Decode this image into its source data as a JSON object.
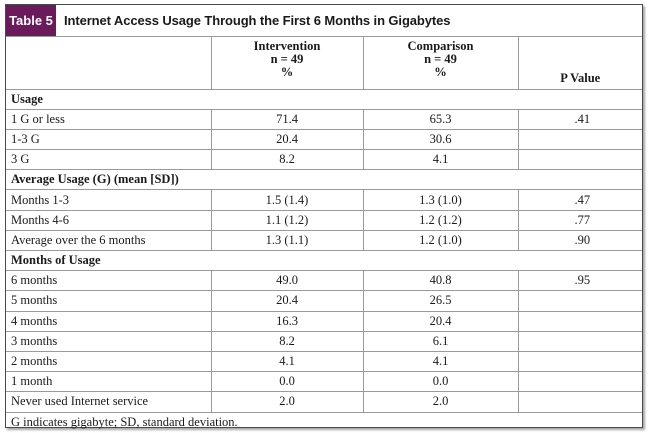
{
  "table_label": "Table 5",
  "title": "Internet Access Usage Through the First 6 Months in Gigabytes",
  "header": {
    "intervention": [
      "Intervention",
      "n = 49",
      "%"
    ],
    "comparison": [
      "Comparison",
      "n = 49",
      "%"
    ],
    "pvalue": "P Value"
  },
  "rows": [
    {
      "type": "section",
      "label": "Usage"
    },
    {
      "type": "data",
      "label": "1 G or less",
      "intervention": "71.4",
      "comparison": "65.3",
      "p": ".41"
    },
    {
      "type": "data",
      "label": "1-3 G",
      "intervention": "20.4",
      "comparison": "30.6",
      "p": ""
    },
    {
      "type": "data",
      "label": "3 G",
      "intervention": "8.2",
      "comparison": "4.1",
      "p": ""
    },
    {
      "type": "section",
      "label": "Average Usage (G) (mean [SD])"
    },
    {
      "type": "data",
      "label": "Months 1-3",
      "intervention": "1.5 (1.4)",
      "comparison": "1.3 (1.0)",
      "p": ".47"
    },
    {
      "type": "data",
      "label": "Months 4-6",
      "intervention": "1.1 (1.2)",
      "comparison": "1.2 (1.2)",
      "p": ".77"
    },
    {
      "type": "data",
      "label": "Average over the 6 months",
      "intervention": "1.3 (1.1)",
      "comparison": "1.2 (1.0)",
      "p": ".90"
    },
    {
      "type": "section",
      "label": "Months of Usage"
    },
    {
      "type": "data",
      "label": "6 months",
      "intervention": "49.0",
      "comparison": "40.8",
      "p": ".95"
    },
    {
      "type": "data",
      "label": "5 months",
      "intervention": "20.4",
      "comparison": "26.5",
      "p": ""
    },
    {
      "type": "data",
      "label": "4 months",
      "intervention": "16.3",
      "comparison": "20.4",
      "p": ""
    },
    {
      "type": "data",
      "label": "3 months",
      "intervention": "8.2",
      "comparison": "6.1",
      "p": ""
    },
    {
      "type": "data",
      "label": "2 months",
      "intervention": "4.1",
      "comparison": "4.1",
      "p": ""
    },
    {
      "type": "data",
      "label": "1 month",
      "intervention": "0.0",
      "comparison": "0.0",
      "p": ""
    },
    {
      "type": "data",
      "label": "Never used Internet service",
      "intervention": "2.0",
      "comparison": "2.0",
      "p": ""
    }
  ],
  "footnote": "G indicates gigabyte; SD, standard deviation.",
  "colors": {
    "badge": "#6b1a5c",
    "border": "#9a9a9a"
  }
}
